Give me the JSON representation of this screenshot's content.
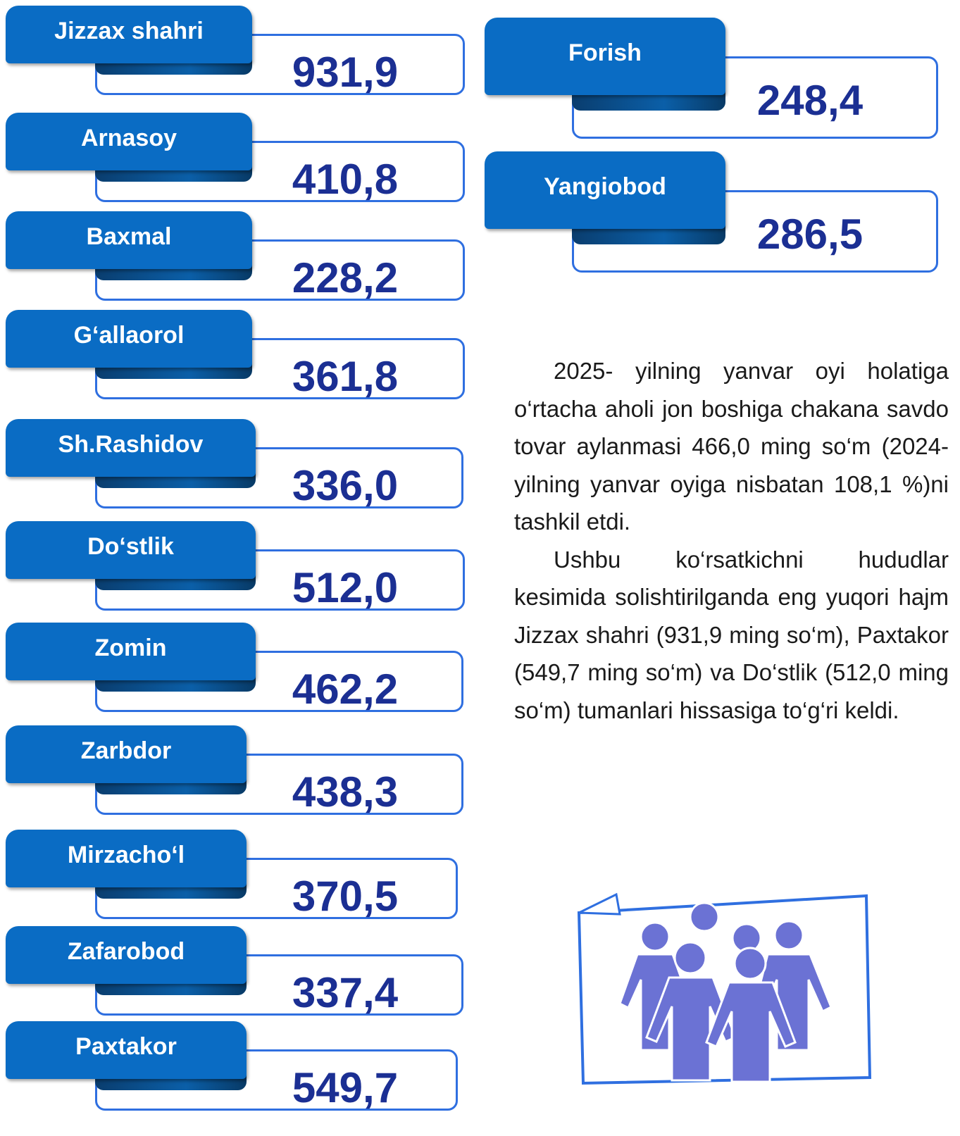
{
  "regions": [
    {
      "name": "Jizzax shahri",
      "value": "931,9"
    },
    {
      "name": "Arnasoy",
      "value": "410,8"
    },
    {
      "name": "Baxmal",
      "value": "228,2"
    },
    {
      "name": "G‘allaorol",
      "value": "361,8"
    },
    {
      "name": "Sh.Rashidov",
      "value": "336,0"
    },
    {
      "name": "Do‘stlik",
      "value": "512,0"
    },
    {
      "name": "Zomin",
      "value": "462,2"
    },
    {
      "name": "Zarbdor",
      "value": "438,3"
    },
    {
      "name": "Mirzacho‘l",
      "value": "370,5"
    },
    {
      "name": "Zafarobod",
      "value": "337,4"
    },
    {
      "name": "Paxtakor",
      "value": "549,7"
    },
    {
      "name": "Forish",
      "value": "248,4"
    },
    {
      "name": "Yangiobod",
      "value": "286,5"
    }
  ],
  "paragraphs": [
    "2025- yilning yanvar oyi holatiga o‘rtacha aholi jon boshiga chakana savdo tovar aylanmasi 466,0 ming so‘m (2024- yilning yanvar oyiga nisbatan 108,1 %)ni tashkil etdi.",
    "Ushbu ko‘rsatkichni hududlar kesimida solishtirilganda eng yuqori hajm Jizzax shahri (931,9 ming so‘m), Paxtakor (549,7 ming so‘m) va Do‘stlik (512,0 ming so‘m) tumanlari hissasiga to‘g‘ri keldi."
  ]
}
